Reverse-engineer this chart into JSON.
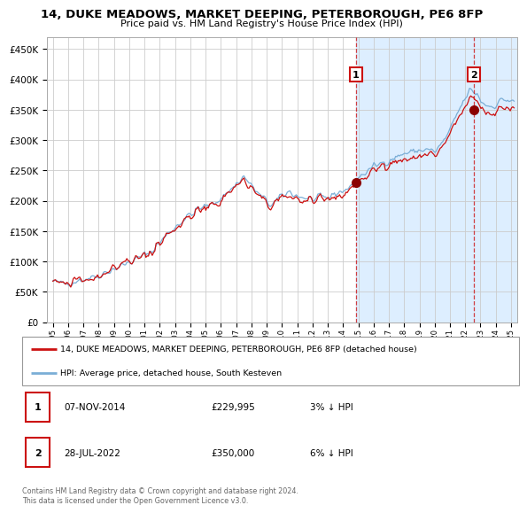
{
  "title": "14, DUKE MEADOWS, MARKET DEEPING, PETERBOROUGH, PE6 8FP",
  "subtitle": "Price paid vs. HM Land Registry's House Price Index (HPI)",
  "legend_line1": "14, DUKE MEADOWS, MARKET DEEPING, PETERBOROUGH, PE6 8FP (detached house)",
  "legend_line2": "HPI: Average price, detached house, South Kesteven",
  "footnote": "Contains HM Land Registry data © Crown copyright and database right 2024.\nThis data is licensed under the Open Government Licence v3.0.",
  "table_rows": [
    {
      "num": "1",
      "date": "07-NOV-2014",
      "price": "£229,995",
      "hpi": "3% ↓ HPI"
    },
    {
      "num": "2",
      "date": "28-JUL-2022",
      "price": "£350,000",
      "hpi": "6% ↓ HPI"
    }
  ],
  "sale1_year": 2014.85,
  "sale1_price": 229995,
  "sale2_year": 2022.57,
  "sale2_price": 350000,
  "hpi_color": "#7aaed6",
  "price_color": "#cc1111",
  "vline_color": "#cc1111",
  "shade_color": "#ddeeff",
  "background_color": "#ffffff",
  "grid_color": "#cccccc",
  "ylim": [
    0,
    470000
  ],
  "xlim_start": 1994.6,
  "xlim_end": 2025.4,
  "yticks": [
    0,
    50000,
    100000,
    150000,
    200000,
    250000,
    300000,
    350000,
    400000,
    450000
  ],
  "xticks": [
    1995,
    1996,
    1997,
    1998,
    1999,
    2000,
    2001,
    2002,
    2003,
    2004,
    2005,
    2006,
    2007,
    2008,
    2009,
    2010,
    2011,
    2012,
    2013,
    2014,
    2015,
    2016,
    2017,
    2018,
    2019,
    2020,
    2021,
    2022,
    2023,
    2024,
    2025
  ]
}
